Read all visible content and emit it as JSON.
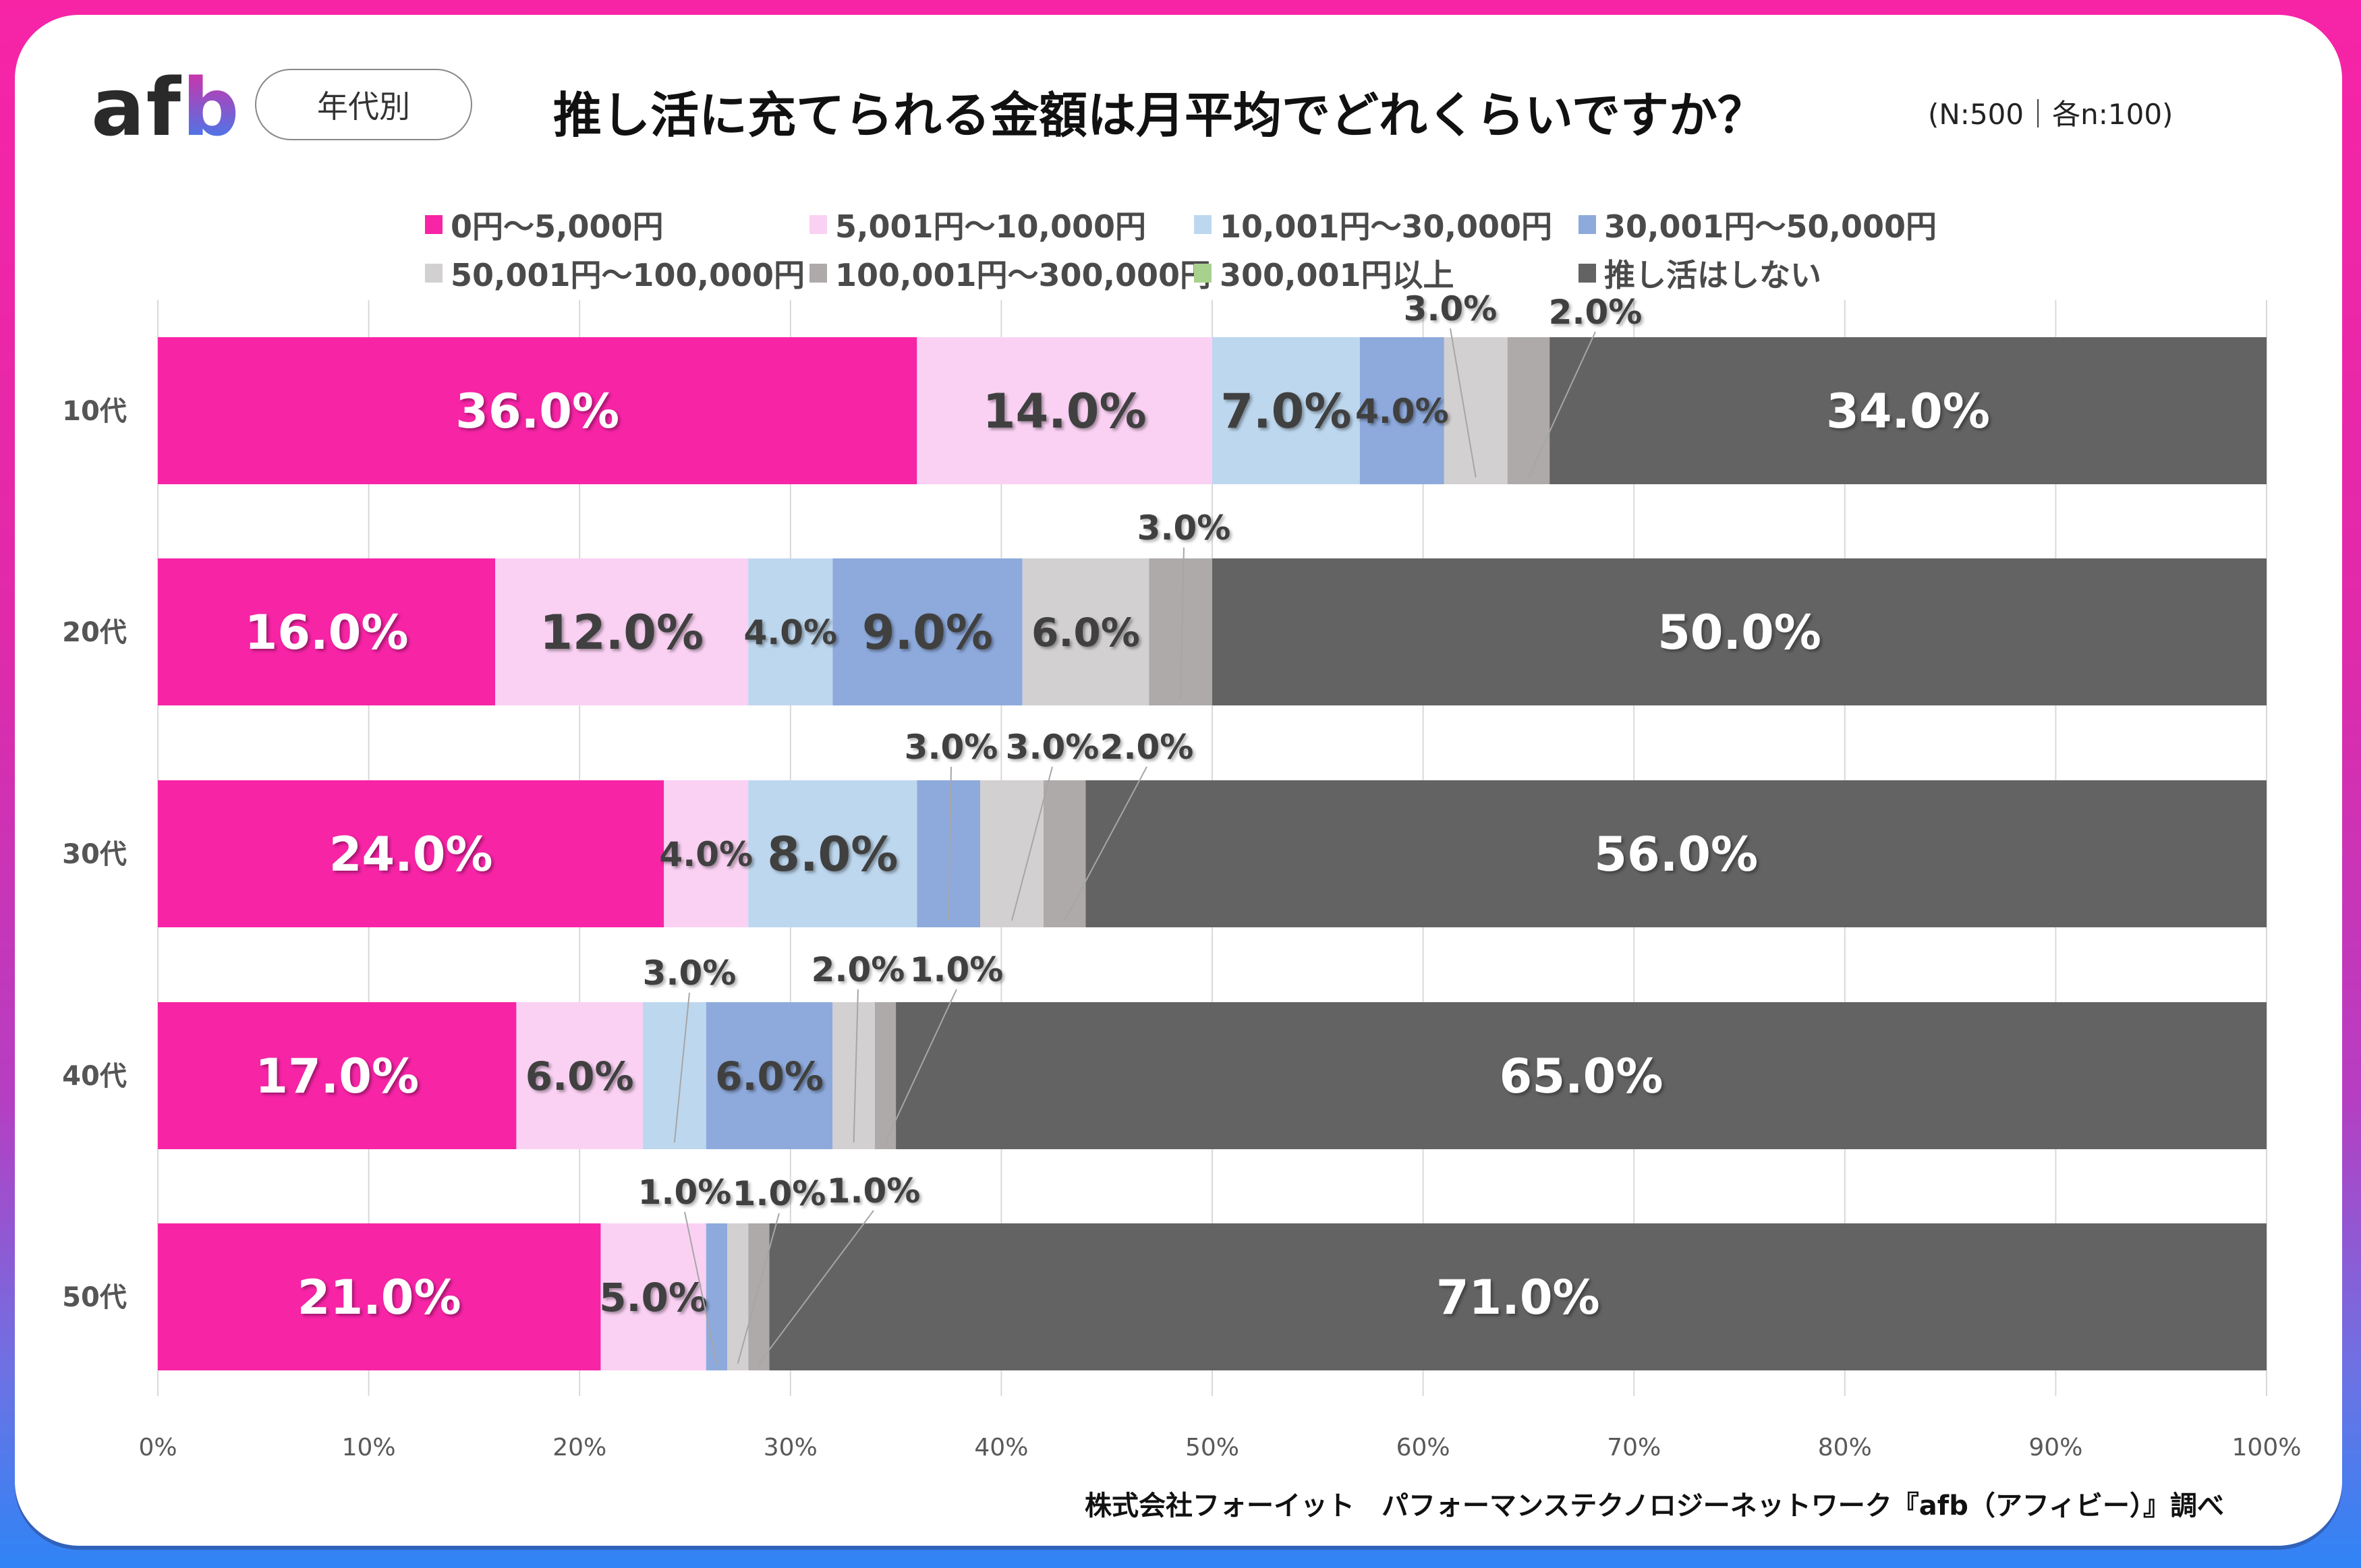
{
  "header": {
    "logo": {
      "a": "a",
      "f": "f",
      "b": "b"
    },
    "segment_pill": "年代別",
    "title": "推し活に充てられる金額は月平均でどれくらいですか？",
    "sample_note": "(N:500｜各n:100)"
  },
  "source": "株式会社フォーイット　パフォーマンステクノロジーネットワーク『afb（アフィビー）』調べ",
  "chart_data": {
    "type": "bar",
    "orientation": "horizontal",
    "stacked": "percent",
    "title": "推し活に充てられる金額は月平均でどれくらいですか？",
    "xlabel": "",
    "ylabel": "",
    "xlim": [
      0,
      100
    ],
    "x_ticks": [
      "0%",
      "10%",
      "20%",
      "30%",
      "40%",
      "50%",
      "60%",
      "70%",
      "80%",
      "90%",
      "100%"
    ],
    "grid": true,
    "legend_position": "top",
    "categories": [
      "10代",
      "20代",
      "30代",
      "40代",
      "50代"
    ],
    "series": [
      {
        "name": "0円～5,000円",
        "color": "#f724a6",
        "label_color": "#ffffff",
        "values": [
          36.0,
          16.0,
          24.0,
          17.0,
          21.0
        ],
        "labels": [
          "36.0%",
          "16.0%",
          "24.0%",
          "17.0%",
          "21.0%"
        ]
      },
      {
        "name": "5,001円～10,000円",
        "color": "#fad1f3",
        "label_color": "#404040",
        "values": [
          14.0,
          12.0,
          4.0,
          6.0,
          5.0
        ],
        "labels": [
          "14.0%",
          "12.0%",
          "4.0%",
          "6.0%",
          "5.0%"
        ]
      },
      {
        "name": "10,001円～30,000円",
        "color": "#bdd7ee",
        "label_color": "#404040",
        "values": [
          7.0,
          4.0,
          8.0,
          3.0,
          0.0
        ],
        "labels": [
          "7.0%",
          "4.0%",
          "8.0%",
          "3.0%",
          ""
        ]
      },
      {
        "name": "30,001円～50,000円",
        "color": "#8eaadc",
        "label_color": "#404040",
        "values": [
          4.0,
          9.0,
          3.0,
          6.0,
          1.0
        ],
        "labels": [
          "4.0%",
          "9.0%",
          "3.0%",
          "6.0%",
          "1.0%"
        ]
      },
      {
        "name": "50,001円～100,000円",
        "color": "#d3d0d1",
        "label_color": "#404040",
        "values": [
          3.0,
          6.0,
          3.0,
          2.0,
          1.0
        ],
        "labels": [
          "3.0%",
          "6.0%",
          "3.0%",
          "2.0%",
          "1.0%"
        ]
      },
      {
        "name": "100,001円～300,000円",
        "color": "#aeaaa9",
        "label_color": "#404040",
        "values": [
          2.0,
          3.0,
          2.0,
          1.0,
          1.0
        ],
        "labels": [
          "2.0%",
          "3.0%",
          "2.0%",
          "1.0%",
          "1.0%"
        ]
      },
      {
        "name": "300,001円以上",
        "color": "#a9d18e",
        "label_color": "#404040",
        "values": [
          0.0,
          0.0,
          0.0,
          0.0,
          0.0
        ],
        "labels": [
          "",
          "",
          "",
          "",
          ""
        ]
      },
      {
        "name": "推し活はしない",
        "color": "#636363",
        "label_color": "#ffffff",
        "values": [
          34.0,
          50.0,
          56.0,
          65.0,
          71.0
        ],
        "labels": [
          "34.0%",
          "50.0%",
          "56.0%",
          "65.0%",
          "71.0%"
        ]
      }
    ]
  }
}
